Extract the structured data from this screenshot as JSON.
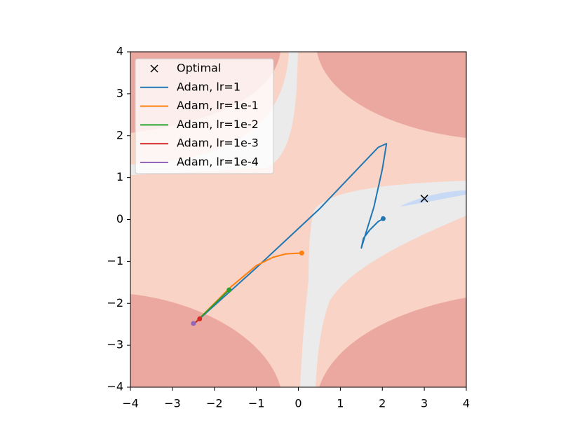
{
  "chart_data": {
    "type": "line",
    "xlim": [
      -4,
      4
    ],
    "ylim": [
      -4,
      4
    ],
    "xticks": [
      {
        "value": -4,
        "label": "−4"
      },
      {
        "value": -3,
        "label": "−3"
      },
      {
        "value": -2,
        "label": "−2"
      },
      {
        "value": -1,
        "label": "−1"
      },
      0,
      1,
      2,
      3,
      4
    ],
    "yticks": [
      {
        "value": -4,
        "label": "−4"
      },
      {
        "value": -3,
        "label": "−3"
      },
      {
        "value": -2,
        "label": "−2"
      },
      {
        "value": -1,
        "label": "−1"
      },
      0,
      1,
      2,
      3,
      4
    ],
    "legend": "upper left",
    "series": [
      {
        "name": "Optimal",
        "color": "#000000",
        "marker": "x",
        "x": [
          3
        ],
        "y": [
          0.5
        ]
      },
      {
        "name": "Adam, lr=1",
        "color": "#1f77b4",
        "x": [
          -2.5,
          -1.0,
          0.5,
          1.9,
          2.1,
          2.0,
          1.8,
          1.6,
          1.5,
          1.55,
          1.7,
          1.9,
          2.02
        ],
        "y": [
          -2.5,
          -1.15,
          0.25,
          1.72,
          1.81,
          1.2,
          0.3,
          -0.35,
          -0.68,
          -0.45,
          -0.25,
          -0.05,
          0.02
        ]
      },
      {
        "name": "Adam, lr=1e-1",
        "color": "#ff7f0e",
        "x": [
          -2.5,
          -1.6,
          -1.0,
          -0.6,
          -0.3,
          0.08
        ],
        "y": [
          -2.5,
          -1.6,
          -1.1,
          -0.9,
          -0.82,
          -0.8
        ]
      },
      {
        "name": "Adam, lr=1e-2",
        "color": "#2ca02c",
        "x": [
          -2.5,
          -1.65
        ],
        "y": [
          -2.5,
          -1.68
        ]
      },
      {
        "name": "Adam, lr=1e-3",
        "color": "#d62728",
        "x": [
          -2.5,
          -2.35
        ],
        "y": [
          -2.5,
          -2.37
        ]
      },
      {
        "name": "Adam, lr=1e-4",
        "color": "#9467bd",
        "x": [
          -2.5,
          -2.5
        ],
        "y": [
          -2.5,
          -2.48
        ]
      }
    ]
  }
}
